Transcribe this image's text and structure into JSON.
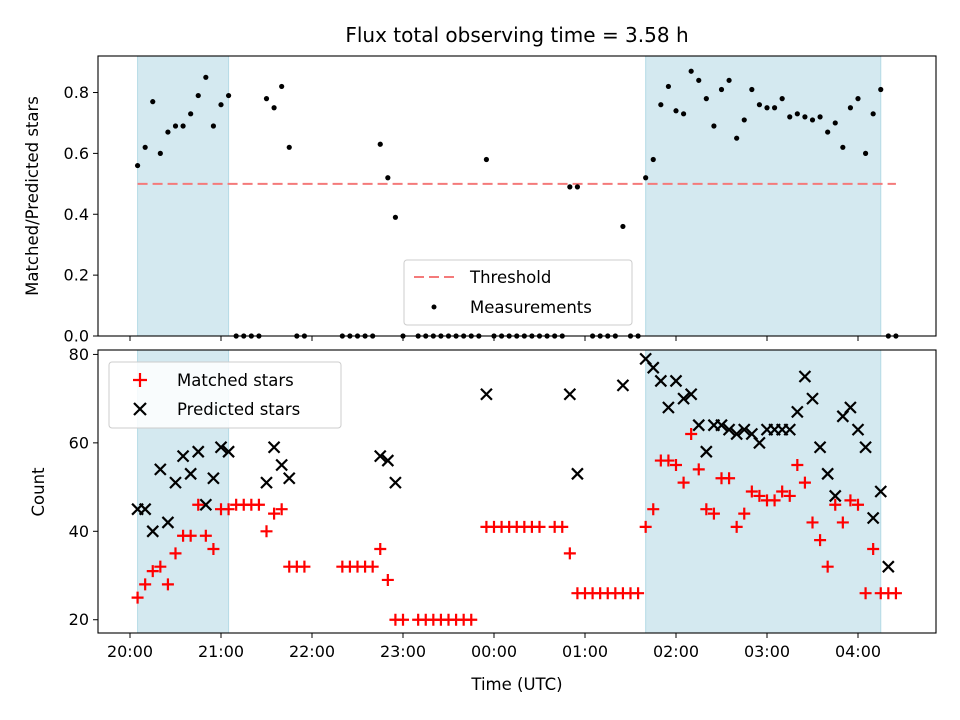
{
  "chart_data": [
    {
      "type": "scatter",
      "title": "Flux total observing time = 3.58 h",
      "xlabel": "",
      "ylabel": "Matched/Predicted stars",
      "ylim": [
        0,
        0.92
      ],
      "yticks": [
        "0.0",
        "0.2",
        "0.4",
        "0.6",
        "0.8"
      ],
      "shaded_regions": [
        [
          "20:05",
          "21:05"
        ],
        [
          "01:40",
          "04:15"
        ]
      ],
      "shade_color": "#d4e9f0",
      "threshold": {
        "name": "Threshold",
        "value": 0.5,
        "x_range": [
          "20:05",
          "04:25"
        ],
        "color": "#f47a7a"
      },
      "legend": {
        "position": "lower-center",
        "entries": [
          "Threshold",
          "Measurements"
        ]
      },
      "series": [
        {
          "name": "Measurements",
          "color": "#000000",
          "points": [
            [
              "20:05",
              0.56
            ],
            [
              "20:10",
              0.62
            ],
            [
              "20:15",
              0.77
            ],
            [
              "20:20",
              0.6
            ],
            [
              "20:25",
              0.67
            ],
            [
              "20:30",
              0.69
            ],
            [
              "20:35",
              0.69
            ],
            [
              "20:40",
              0.73
            ],
            [
              "20:45",
              0.79
            ],
            [
              "20:50",
              0.85
            ],
            [
              "20:55",
              0.69
            ],
            [
              "21:00",
              0.76
            ],
            [
              "21:05",
              0.79
            ],
            [
              "21:10",
              0.0
            ],
            [
              "21:15",
              0.0
            ],
            [
              "21:20",
              0.0
            ],
            [
              "21:25",
              0.0
            ],
            [
              "21:30",
              0.78
            ],
            [
              "21:35",
              0.75
            ],
            [
              "21:40",
              0.82
            ],
            [
              "21:45",
              0.62
            ],
            [
              "21:50",
              0.0
            ],
            [
              "21:55",
              0.0
            ],
            [
              "22:20",
              0.0
            ],
            [
              "22:25",
              0.0
            ],
            [
              "22:30",
              0.0
            ],
            [
              "22:35",
              0.0
            ],
            [
              "22:40",
              0.0
            ],
            [
              "22:45",
              0.63
            ],
            [
              "22:50",
              0.52
            ],
            [
              "22:55",
              0.39
            ],
            [
              "23:00",
              0.0
            ],
            [
              "23:10",
              0.0
            ],
            [
              "23:15",
              0.0
            ],
            [
              "23:20",
              0.0
            ],
            [
              "23:25",
              0.0
            ],
            [
              "23:30",
              0.0
            ],
            [
              "23:35",
              0.0
            ],
            [
              "23:40",
              0.0
            ],
            [
              "23:45",
              0.0
            ],
            [
              "23:50",
              0.0
            ],
            [
              "23:55",
              0.58
            ],
            [
              "00:00",
              0.0
            ],
            [
              "00:05",
              0.0
            ],
            [
              "00:10",
              0.0
            ],
            [
              "00:15",
              0.0
            ],
            [
              "00:20",
              0.0
            ],
            [
              "00:25",
              0.0
            ],
            [
              "00:30",
              0.0
            ],
            [
              "00:35",
              0.0
            ],
            [
              "00:40",
              0.0
            ],
            [
              "00:45",
              0.0
            ],
            [
              "00:50",
              0.49
            ],
            [
              "00:55",
              0.49
            ],
            [
              "01:05",
              0.0
            ],
            [
              "01:10",
              0.0
            ],
            [
              "01:15",
              0.0
            ],
            [
              "01:20",
              0.0
            ],
            [
              "01:25",
              0.36
            ],
            [
              "01:30",
              0.0
            ],
            [
              "01:35",
              0.0
            ],
            [
              "01:40",
              0.52
            ],
            [
              "01:45",
              0.58
            ],
            [
              "01:50",
              0.76
            ],
            [
              "01:55",
              0.82
            ],
            [
              "02:00",
              0.74
            ],
            [
              "02:05",
              0.73
            ],
            [
              "02:10",
              0.87
            ],
            [
              "02:15",
              0.84
            ],
            [
              "02:20",
              0.78
            ],
            [
              "02:25",
              0.69
            ],
            [
              "02:30",
              0.81
            ],
            [
              "02:35",
              0.84
            ],
            [
              "02:40",
              0.65
            ],
            [
              "02:45",
              0.71
            ],
            [
              "02:50",
              0.81
            ],
            [
              "02:55",
              0.76
            ],
            [
              "03:00",
              0.75
            ],
            [
              "03:05",
              0.75
            ],
            [
              "03:10",
              0.78
            ],
            [
              "03:15",
              0.72
            ],
            [
              "03:20",
              0.73
            ],
            [
              "03:25",
              0.72
            ],
            [
              "03:30",
              0.71
            ],
            [
              "03:35",
              0.72
            ],
            [
              "03:40",
              0.67
            ],
            [
              "03:45",
              0.7
            ],
            [
              "03:50",
              0.62
            ],
            [
              "03:55",
              0.75
            ],
            [
              "04:00",
              0.78
            ],
            [
              "04:05",
              0.6
            ],
            [
              "04:10",
              0.73
            ],
            [
              "04:15",
              0.81
            ],
            [
              "04:20",
              0.0
            ],
            [
              "04:25",
              0.0
            ]
          ]
        }
      ]
    },
    {
      "type": "scatter",
      "title": "",
      "xlabel": "Time (UTC)",
      "ylabel": "Count",
      "ylim": [
        17,
        81
      ],
      "yticks": [
        "20",
        "40",
        "60",
        "80"
      ],
      "xticks": [
        "20:00",
        "21:00",
        "22:00",
        "23:00",
        "00:00",
        "01:00",
        "02:00",
        "03:00",
        "04:00"
      ],
      "shaded_regions": [
        [
          "20:05",
          "21:05"
        ],
        [
          "01:40",
          "04:15"
        ]
      ],
      "shade_color": "#d4e9f0",
      "legend": {
        "position": "top-left",
        "entries": [
          "Matched stars",
          "Predicted stars"
        ]
      },
      "series": [
        {
          "name": "Matched stars",
          "marker": "+",
          "color": "#ff0000",
          "points": [
            [
              "20:05",
              25
            ],
            [
              "20:10",
              28
            ],
            [
              "20:15",
              31
            ],
            [
              "20:20",
              32
            ],
            [
              "20:25",
              28
            ],
            [
              "20:30",
              35
            ],
            [
              "20:35",
              39
            ],
            [
              "20:40",
              39
            ],
            [
              "20:45",
              46
            ],
            [
              "20:50",
              39
            ],
            [
              "20:55",
              36
            ],
            [
              "21:00",
              45
            ],
            [
              "21:05",
              45
            ],
            [
              "21:10",
              46
            ],
            [
              "21:15",
              46
            ],
            [
              "21:20",
              46
            ],
            [
              "21:25",
              46
            ],
            [
              "21:30",
              40
            ],
            [
              "21:35",
              44
            ],
            [
              "21:40",
              45
            ],
            [
              "21:45",
              32
            ],
            [
              "21:50",
              32
            ],
            [
              "21:55",
              32
            ],
            [
              "22:20",
              32
            ],
            [
              "22:25",
              32
            ],
            [
              "22:30",
              32
            ],
            [
              "22:35",
              32
            ],
            [
              "22:40",
              32
            ],
            [
              "22:45",
              36
            ],
            [
              "22:50",
              29
            ],
            [
              "22:55",
              20
            ],
            [
              "23:00",
              20
            ],
            [
              "23:10",
              20
            ],
            [
              "23:15",
              20
            ],
            [
              "23:20",
              20
            ],
            [
              "23:25",
              20
            ],
            [
              "23:30",
              20
            ],
            [
              "23:35",
              20
            ],
            [
              "23:40",
              20
            ],
            [
              "23:45",
              20
            ],
            [
              "23:55",
              41
            ],
            [
              "00:00",
              41
            ],
            [
              "00:05",
              41
            ],
            [
              "00:10",
              41
            ],
            [
              "00:15",
              41
            ],
            [
              "00:20",
              41
            ],
            [
              "00:25",
              41
            ],
            [
              "00:30",
              41
            ],
            [
              "00:40",
              41
            ],
            [
              "00:45",
              41
            ],
            [
              "00:50",
              35
            ],
            [
              "00:55",
              26
            ],
            [
              "01:00",
              26
            ],
            [
              "01:05",
              26
            ],
            [
              "01:10",
              26
            ],
            [
              "01:15",
              26
            ],
            [
              "01:20",
              26
            ],
            [
              "01:25",
              26
            ],
            [
              "01:30",
              26
            ],
            [
              "01:35",
              26
            ],
            [
              "01:40",
              41
            ],
            [
              "01:45",
              45
            ],
            [
              "01:50",
              56
            ],
            [
              "01:55",
              56
            ],
            [
              "02:00",
              55
            ],
            [
              "02:05",
              51
            ],
            [
              "02:10",
              62
            ],
            [
              "02:15",
              54
            ],
            [
              "02:20",
              45
            ],
            [
              "02:25",
              44
            ],
            [
              "02:30",
              52
            ],
            [
              "02:35",
              52
            ],
            [
              "02:40",
              41
            ],
            [
              "02:45",
              44
            ],
            [
              "02:50",
              49
            ],
            [
              "02:55",
              48
            ],
            [
              "03:00",
              47
            ],
            [
              "03:05",
              47
            ],
            [
              "03:10",
              49
            ],
            [
              "03:15",
              48
            ],
            [
              "03:20",
              55
            ],
            [
              "03:25",
              51
            ],
            [
              "03:30",
              42
            ],
            [
              "03:35",
              38
            ],
            [
              "03:40",
              32
            ],
            [
              "03:45",
              46
            ],
            [
              "03:50",
              42
            ],
            [
              "03:55",
              47
            ],
            [
              "04:00",
              46
            ],
            [
              "04:05",
              26
            ],
            [
              "04:10",
              36
            ],
            [
              "04:15",
              26
            ],
            [
              "04:20",
              26
            ],
            [
              "04:25",
              26
            ]
          ]
        },
        {
          "name": "Predicted stars",
          "marker": "x",
          "color": "#000000",
          "points": [
            [
              "20:05",
              45
            ],
            [
              "20:10",
              45
            ],
            [
              "20:15",
              40
            ],
            [
              "20:20",
              54
            ],
            [
              "20:25",
              42
            ],
            [
              "20:30",
              51
            ],
            [
              "20:35",
              57
            ],
            [
              "20:40",
              53
            ],
            [
              "20:45",
              58
            ],
            [
              "20:50",
              46
            ],
            [
              "20:55",
              52
            ],
            [
              "21:00",
              59
            ],
            [
              "21:05",
              58
            ],
            [
              "21:30",
              51
            ],
            [
              "21:35",
              59
            ],
            [
              "21:40",
              55
            ],
            [
              "21:45",
              52
            ],
            [
              "22:45",
              57
            ],
            [
              "22:50",
              56
            ],
            [
              "22:55",
              51
            ],
            [
              "23:55",
              71
            ],
            [
              "00:50",
              71
            ],
            [
              "00:55",
              53
            ],
            [
              "01:25",
              73
            ],
            [
              "01:40",
              79
            ],
            [
              "01:45",
              77
            ],
            [
              "01:50",
              74
            ],
            [
              "01:55",
              68
            ],
            [
              "02:00",
              74
            ],
            [
              "02:05",
              70
            ],
            [
              "02:10",
              71
            ],
            [
              "02:15",
              64
            ],
            [
              "02:20",
              58
            ],
            [
              "02:25",
              64
            ],
            [
              "02:30",
              64
            ],
            [
              "02:35",
              63
            ],
            [
              "02:40",
              62
            ],
            [
              "02:45",
              63
            ],
            [
              "02:50",
              62
            ],
            [
              "02:55",
              60
            ],
            [
              "03:00",
              63
            ],
            [
              "03:05",
              63
            ],
            [
              "03:10",
              63
            ],
            [
              "03:15",
              63
            ],
            [
              "03:20",
              67
            ],
            [
              "03:25",
              75
            ],
            [
              "03:30",
              70
            ],
            [
              "03:35",
              59
            ],
            [
              "03:40",
              53
            ],
            [
              "03:45",
              48
            ],
            [
              "03:50",
              66
            ],
            [
              "03:55",
              68
            ],
            [
              "04:00",
              63
            ],
            [
              "04:05",
              59
            ],
            [
              "04:10",
              43
            ],
            [
              "04:15",
              49
            ],
            [
              "04:20",
              32
            ]
          ]
        }
      ]
    }
  ]
}
